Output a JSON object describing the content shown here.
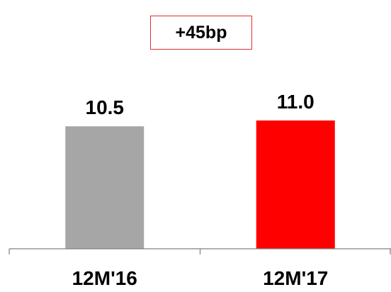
{
  "chart_data": {
    "type": "bar",
    "categories": [
      "12M'16",
      "12M'17"
    ],
    "values": [
      10.5,
      11.0
    ],
    "value_labels": [
      "10.5",
      "11.0"
    ],
    "colors": [
      "#a6a6a6",
      "#ff0000"
    ],
    "annotation": "+45bp",
    "annotation_border_color": "#e03030",
    "axis_color": "#808080",
    "ylim": [
      0,
      11.0
    ],
    "grid": false,
    "legend": "none"
  }
}
